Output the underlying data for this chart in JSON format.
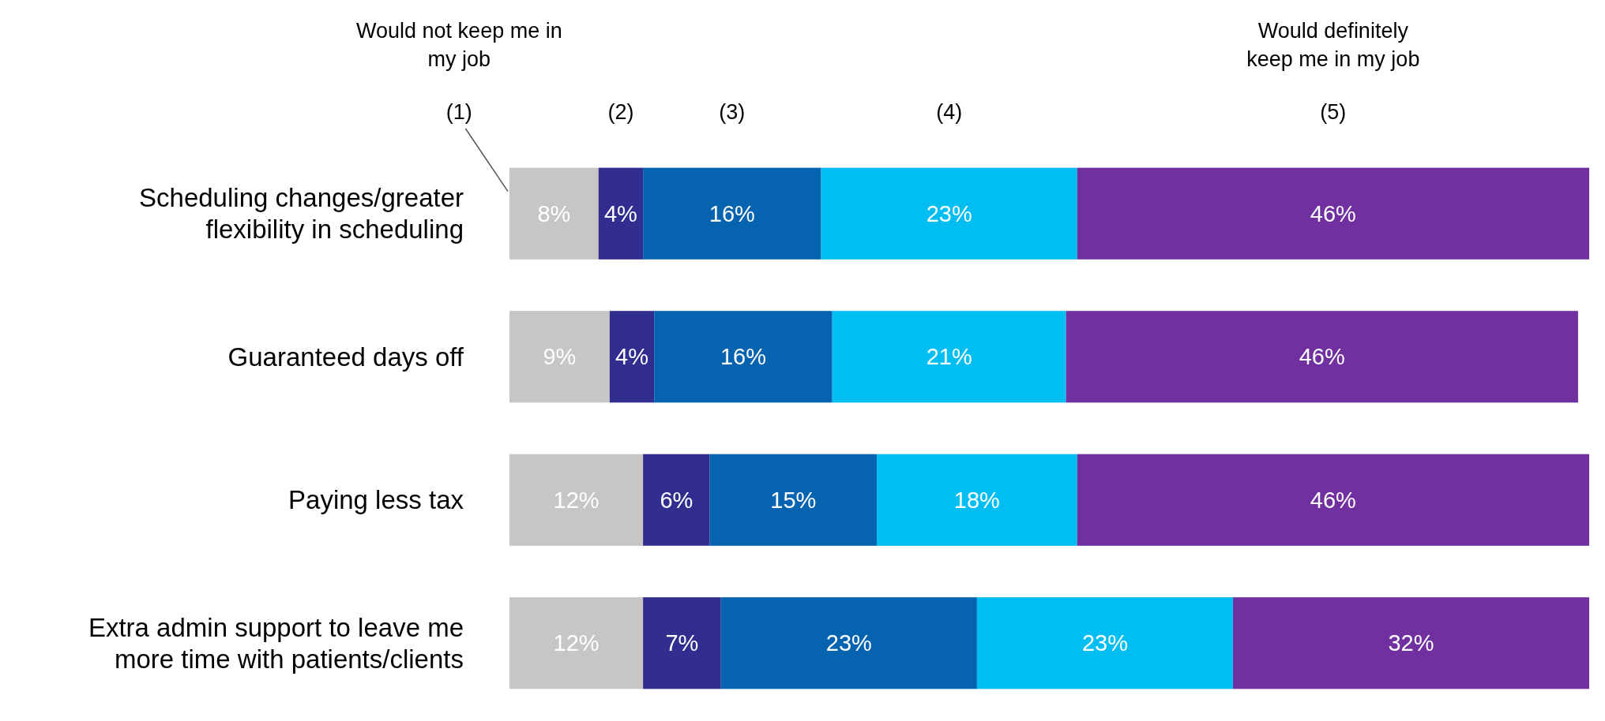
{
  "chart_data": {
    "type": "bar",
    "orientation": "horizontal",
    "stacked": true,
    "legend": "top",
    "categories": [
      "Scheduling changes/greater flexibility in scheduling",
      "Guaranteed days off",
      "Paying less tax",
      "Extra admin support to leave me more time with patients/clients"
    ],
    "series": [
      {
        "name": "(1)",
        "color": "#c8c6c4",
        "values": [
          8,
          9,
          12,
          12
        ],
        "value_labels": [
          "8%",
          "9%",
          "12%",
          "12%"
        ]
      },
      {
        "name": "(2)",
        "color": "#312e8f",
        "values": [
          4,
          4,
          6,
          7
        ],
        "value_labels": [
          "4%",
          "4%",
          "6%",
          "7%"
        ]
      },
      {
        "name": "(3)",
        "color": "#0563b0",
        "values": [
          16,
          16,
          15,
          23
        ],
        "value_labels": [
          "16%",
          "16%",
          "15%",
          "23%"
        ]
      },
      {
        "name": "(4)",
        "color": "#00bdf2",
        "values": [
          23,
          21,
          18,
          23
        ],
        "value_labels": [
          "23%",
          "21%",
          "18%",
          "23%"
        ]
      },
      {
        "name": "(5)",
        "color": "#7030a0",
        "values": [
          46,
          46,
          46,
          32
        ],
        "value_labels": [
          "46%",
          "46%",
          "46%",
          "32%"
        ]
      }
    ],
    "annotations": [
      "Would not keep me in my job",
      "Would definitely keep me in my job"
    ]
  }
}
